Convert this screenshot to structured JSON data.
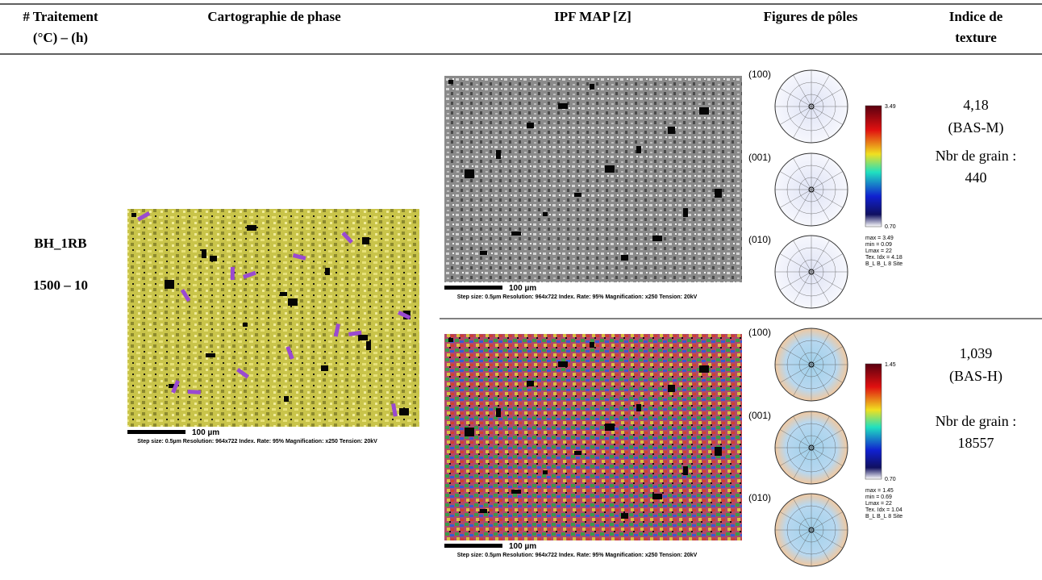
{
  "table": {
    "headers": [
      [
        "# Traitement",
        "(°C) – (h)"
      ],
      [
        "Cartographie de phase"
      ],
      [
        "IPF MAP [Z]"
      ],
      [
        "Figures de pôles"
      ],
      [
        "Indice de",
        "texture"
      ]
    ],
    "sample": [
      "BH_1RB",
      "1500 – 10"
    ],
    "phase_map": {
      "scale_bar": "100 µm",
      "info": "Step size: 0.5µm    Resolution: 964x722    Index. Rate: 95%    Magnification: x250    Tension: 20kV"
    },
    "rows": [
      {
        "ipf_map": {
          "scale_bar": "100 µm",
          "info": "Step size: 0.5µm    Resolution: 964x722    Index. Rate: 95%    Magnification: x250    Tension: 20kV"
        },
        "pole_figures": {
          "labels": [
            "(100)",
            "(001)",
            "(010)"
          ],
          "colorbar_max": "3.49",
          "colorbar_min": "0.70",
          "stats": [
            "max = 3.49",
            "min = 0.09",
            "Lmax = 22",
            "Tex. Idx = 4.18",
            "B_L B_L 8 Site"
          ]
        },
        "texture_index": [
          "4,18",
          "(BAS-M)"
        ],
        "grains": [
          "Nbr de grain :",
          "440"
        ]
      },
      {
        "ipf_map": {
          "scale_bar": "100 µm",
          "info": "Step size: 0.5µm    Resolution: 964x722    Index. Rate: 95%    Magnification: x250    Tension: 20kV"
        },
        "pole_figures": {
          "labels": [
            "(100)",
            "(001)",
            "(010)"
          ],
          "colorbar_max": "1.45",
          "colorbar_min": "0.70",
          "stats": [
            "max = 1.45",
            "min = 0.69",
            "Lmax = 22",
            "Tex. Idx = 1.04",
            "B_L B_L 8 Site"
          ]
        },
        "texture_index": [
          "1,039",
          "(BAS-H)"
        ],
        "grains": [
          "Nbr de grain :",
          "18557"
        ]
      }
    ]
  }
}
